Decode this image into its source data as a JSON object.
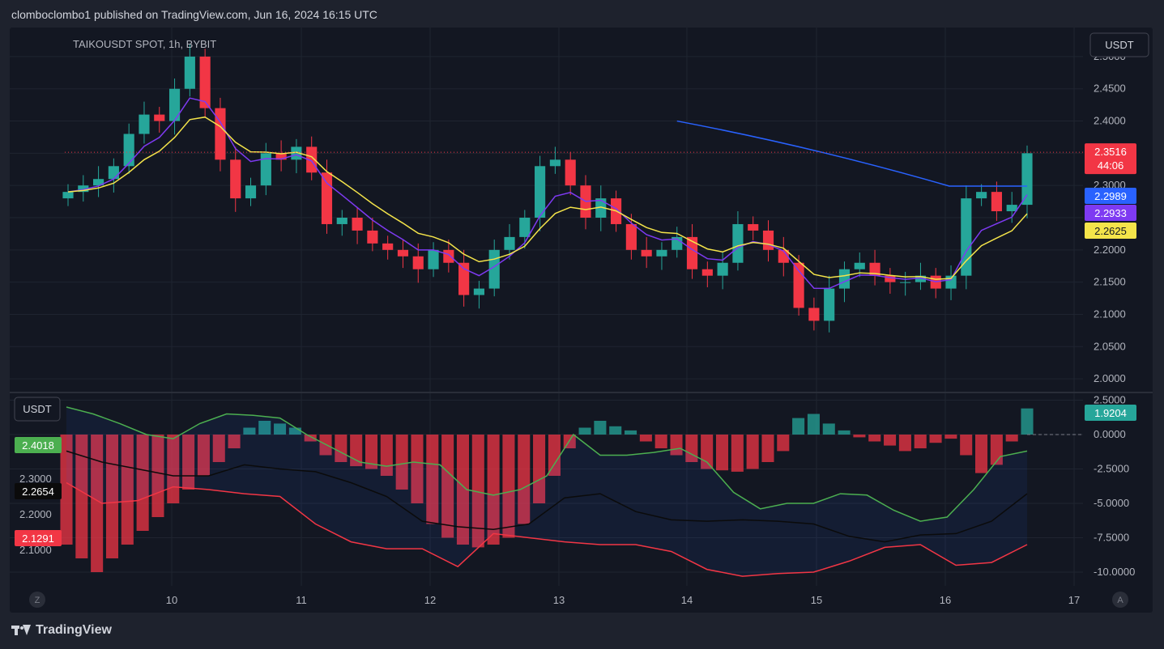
{
  "header": {
    "published": "clomboclombo1 published on TradingView.com, Jun 16, 2024 16:15 UTC"
  },
  "footer": {
    "brand": "TradingView"
  },
  "colors": {
    "bg": "#131722",
    "grid": "#1f2430",
    "up": "#26a69a",
    "down": "#f23645",
    "ema_blue": "#2962ff",
    "ema_purple": "#7e3af2",
    "ema_yellow": "#f4e44a",
    "osc_green": "#4caf50",
    "osc_red": "#f23645",
    "osc_black": "#0b0b0b"
  },
  "chart_data": [
    {
      "type": "candlestick",
      "title": "TAIKOUSDT SPOT, 1h, BYBIT",
      "currency": "USDT",
      "ylim": [
        1.98,
        2.52
      ],
      "y_ticks": [
        "2.5000",
        "2.4500",
        "2.4000",
        "2.3500",
        "2.3000",
        "2.2500",
        "2.2000",
        "2.1500",
        "2.1000",
        "2.0500",
        "2.0000"
      ],
      "x_ticks": [
        "10",
        "11",
        "12",
        "13",
        "14",
        "15",
        "16",
        "17"
      ],
      "last_price": "2.3516",
      "countdown": "44:06",
      "ema_labels": [
        {
          "name": "EMA blue",
          "value": "2.2989",
          "color": "#2962ff"
        },
        {
          "name": "EMA purple",
          "value": "2.2933",
          "color": "#7e3af2"
        },
        {
          "name": "EMA yellow",
          "value": "2.2625",
          "color": "#f4e44a"
        }
      ],
      "close_series": [
        2.29,
        2.3,
        2.31,
        2.33,
        2.38,
        2.41,
        2.4,
        2.45,
        2.5,
        2.42,
        2.34,
        2.28,
        2.3,
        2.35,
        2.34,
        2.36,
        2.32,
        2.24,
        2.25,
        2.23,
        2.21,
        2.2,
        2.19,
        2.17,
        2.2,
        2.18,
        2.13,
        2.14,
        2.2,
        2.22,
        2.25,
        2.33,
        2.34,
        2.3,
        2.25,
        2.28,
        2.24,
        2.2,
        2.19,
        2.2,
        2.22,
        2.17,
        2.16,
        2.18,
        2.24,
        2.23,
        2.2,
        2.18,
        2.11,
        2.09,
        2.14,
        2.17,
        2.18,
        2.16,
        2.15,
        2.15,
        2.16,
        2.14,
        2.16,
        2.28,
        2.29,
        2.26,
        2.27,
        2.35
      ]
    },
    {
      "type": "oscillator",
      "currency": "USDT",
      "ylim": [
        -11,
        3
      ],
      "y_ticks": [
        "2.5000",
        "0.0000",
        "-2.5000",
        "-5.0000",
        "-7.5000",
        "-10.0000"
      ],
      "value_label": "1.9204",
      "left_labels": [
        {
          "text": "2.4018",
          "color": "#4caf50"
        },
        {
          "text": "2.3000",
          "color": ""
        },
        {
          "text": "2.2654",
          "color": "#0b0b0b"
        },
        {
          "text": "2.2000",
          "color": ""
        },
        {
          "text": "2.1291",
          "color": "#f23645"
        },
        {
          "text": "2.1000",
          "color": ""
        }
      ],
      "histogram": [
        -8,
        -9,
        -10,
        -9,
        -8,
        -7,
        -6,
        -5,
        -4,
        -3,
        -2,
        -1,
        0.5,
        1,
        0.8,
        0.5,
        -0.5,
        -1.5,
        -2,
        -2.3,
        -2.5,
        -3,
        -4,
        -5,
        -6.5,
        -7.5,
        -8,
        -8.2,
        -8,
        -7.5,
        -6.5,
        -5,
        -3,
        -1,
        0.5,
        1,
        0.6,
        0.3,
        -0.5,
        -1,
        -1.5,
        -2,
        -2.5,
        -2.6,
        -2.7,
        -2.5,
        -2,
        -1.2,
        1.2,
        1.5,
        0.8,
        0.3,
        -0.2,
        -0.5,
        -0.8,
        -1.2,
        -1.0,
        -0.6,
        -0.3,
        -1.5,
        -2.8,
        -2.2,
        -0.5,
        1.9
      ],
      "upper_line": [
        2,
        1.5,
        0.8,
        0,
        -0.3,
        0.8,
        1.5,
        1.4,
        1.2,
        0,
        -1,
        -2,
        -2.3,
        -2,
        -2.2,
        -4,
        -4.4,
        -4,
        -3,
        0,
        -1.5,
        -1.5,
        -1.3,
        -1,
        -2,
        -4.2,
        -5.4,
        -5,
        -5,
        -4.3,
        -4.4,
        -5.5,
        -6.3,
        -6,
        -4,
        -1.6,
        -1.2
      ],
      "mid_line": [
        -1.2,
        -2,
        -2.5,
        -3,
        -3,
        -2.2,
        -2.5,
        -2.7,
        -3.5,
        -4.5,
        -6.3,
        -6.7,
        -6.9,
        -6.5,
        -4.6,
        -4.3,
        -5.6,
        -6.2,
        -6.3,
        -6.2,
        -6.3,
        -6.5,
        -7.4,
        -7.8,
        -7.3,
        -7.2,
        -6.3,
        -4.3
      ],
      "lower_line": [
        -3.5,
        -5,
        -4.8,
        -3.8,
        -4,
        -4.3,
        -4.5,
        -6.5,
        -7.8,
        -8.3,
        -8.3,
        -9.6,
        -7.2,
        -7.5,
        -7.8,
        -8.0,
        -8.0,
        -8.5,
        -9.8,
        -10.3,
        -10.1,
        -10,
        -9.2,
        -8.2,
        -8.0,
        -9.5,
        -9.3,
        -8.0
      ]
    }
  ]
}
